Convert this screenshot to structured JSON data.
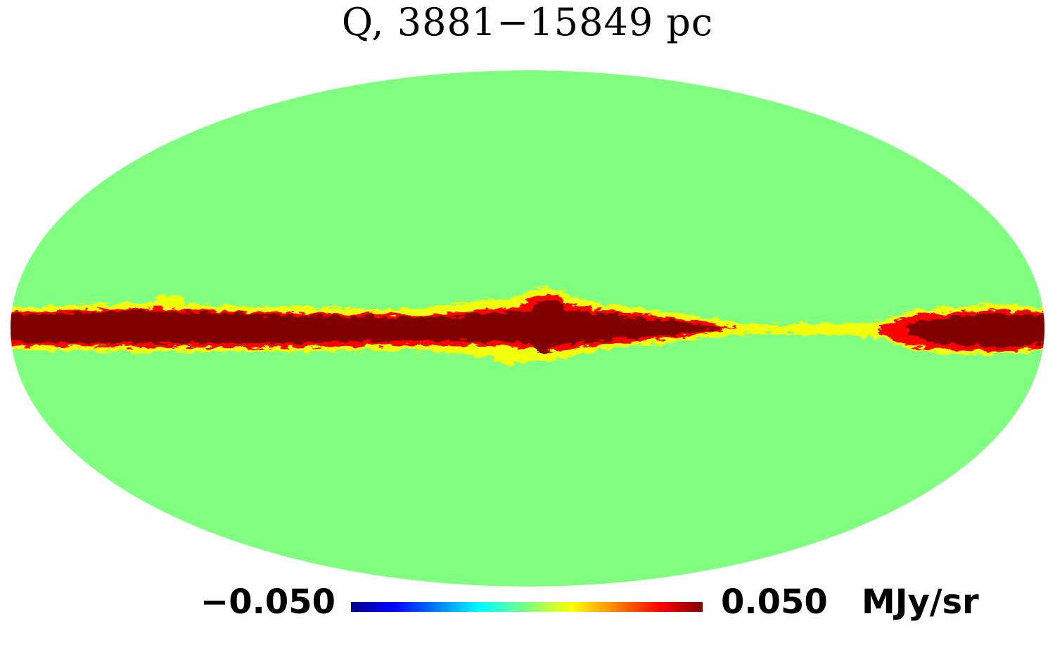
{
  "title": "Q, 3881−15849 pc",
  "projection": "mollweide",
  "colormap": {
    "name": "jet",
    "min_label": "−0.050",
    "max_label": "0.050",
    "unit": "MJy/sr",
    "min_value": -0.05,
    "max_value": 0.05,
    "stops": [
      "#00008f",
      "#0000ff",
      "#00ffff",
      "#7fff7f",
      "#ffff00",
      "#ff0000",
      "#800000"
    ]
  },
  "colors": {
    "background_sky": "#80ff80",
    "band_core": "#800000",
    "band_edge": "#ff0000",
    "band_halo": "#ffff00"
  }
}
